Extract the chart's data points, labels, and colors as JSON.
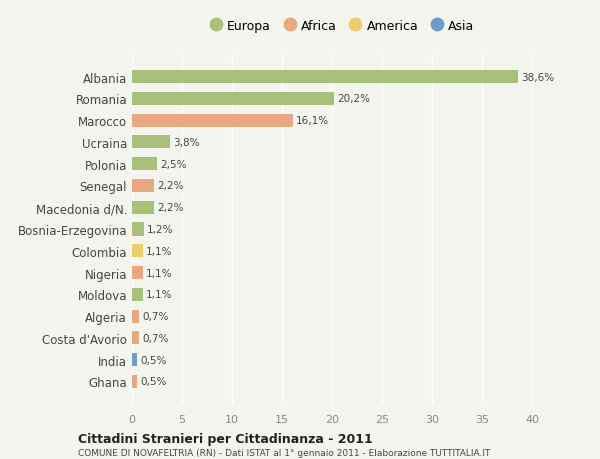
{
  "categories": [
    "Albania",
    "Romania",
    "Marocco",
    "Ucraina",
    "Polonia",
    "Senegal",
    "Macedonia d/N.",
    "Bosnia-Erzegovina",
    "Colombia",
    "Nigeria",
    "Moldova",
    "Algeria",
    "Costa d'Avorio",
    "India",
    "Ghana"
  ],
  "values": [
    38.6,
    20.2,
    16.1,
    3.8,
    2.5,
    2.2,
    2.2,
    1.2,
    1.1,
    1.1,
    1.1,
    0.7,
    0.7,
    0.5,
    0.5
  ],
  "labels": [
    "38,6%",
    "20,2%",
    "16,1%",
    "3,8%",
    "2,5%",
    "2,2%",
    "2,2%",
    "1,2%",
    "1,1%",
    "1,1%",
    "1,1%",
    "0,7%",
    "0,7%",
    "0,5%",
    "0,5%"
  ],
  "continents": [
    "Europa",
    "Europa",
    "Africa",
    "Europa",
    "Europa",
    "Africa",
    "Europa",
    "Europa",
    "America",
    "Africa",
    "Europa",
    "Africa",
    "Africa",
    "Asia",
    "Africa"
  ],
  "colors": {
    "Europa": "#a8c07a",
    "Africa": "#e8a882",
    "America": "#f0cc70",
    "Asia": "#6c9ec8"
  },
  "legend_order": [
    "Europa",
    "Africa",
    "America",
    "Asia"
  ],
  "xlim": [
    0,
    42
  ],
  "xticks": [
    0,
    5,
    10,
    15,
    20,
    25,
    30,
    35,
    40
  ],
  "title": "Cittadini Stranieri per Cittadinanza - 2011",
  "subtitle": "COMUNE DI NOVAFELTRIA (RN) - Dati ISTAT al 1° gennaio 2011 - Elaborazione TUTTITALIA.IT",
  "bg_color": "#f5f5f0",
  "bar_height": 0.6
}
